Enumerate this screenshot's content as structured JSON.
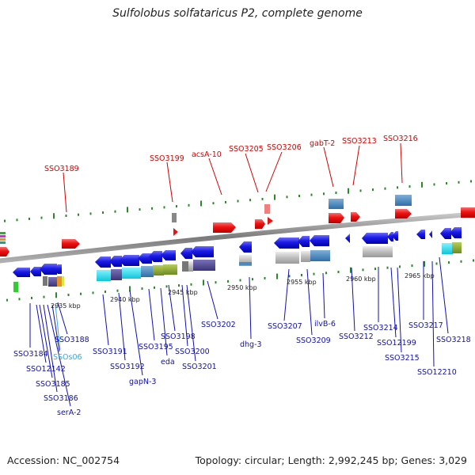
{
  "title": "Sulfolobus solfataricus P2, complete genome",
  "footer": {
    "accession": "Accession: NC_002754",
    "summary": "Topology: circular; Length: 2,992,245 bp; Genes: 3,029"
  },
  "colors": {
    "highlight_label": "#d40000",
    "gene_label": "#1010b0",
    "rna_label": "#33aadd",
    "backbone": "#8c8c8c",
    "tick": "#2a8a2a",
    "forward_highlight": "#ee1111",
    "reverse_gene": "#1a1ae6"
  },
  "scale_ticks": [
    "2935 kbp",
    "2940 kbp",
    "2945 kbp",
    "2950 kbp",
    "2955 kbp",
    "2960 kbp",
    "2965 kbp"
  ],
  "highlighted_genes": [
    "SSO3189",
    "SSO3199",
    "acsA-10",
    "SSO3205",
    "SSO3206",
    "gabT-2",
    "SSO3213",
    "SSO3216"
  ],
  "gene_labels": [
    "SSO3184",
    "SSO12142",
    "SSO3185",
    "SSO3186",
    "serA-2",
    "SSOs06",
    "SSO3188",
    "SSO3191",
    "SSO3192",
    "gapN-3",
    "SSO3195",
    "eda",
    "SSO3198",
    "SSO3200",
    "SSO3201",
    "SSO3202",
    "dhg-3",
    "SSO3207",
    "SSO3209",
    "ilvB-6",
    "SSO3212",
    "SSO3214",
    "SSO12199",
    "SSO3215",
    "SSO3217",
    "SSO12210",
    "SSO3218"
  ]
}
